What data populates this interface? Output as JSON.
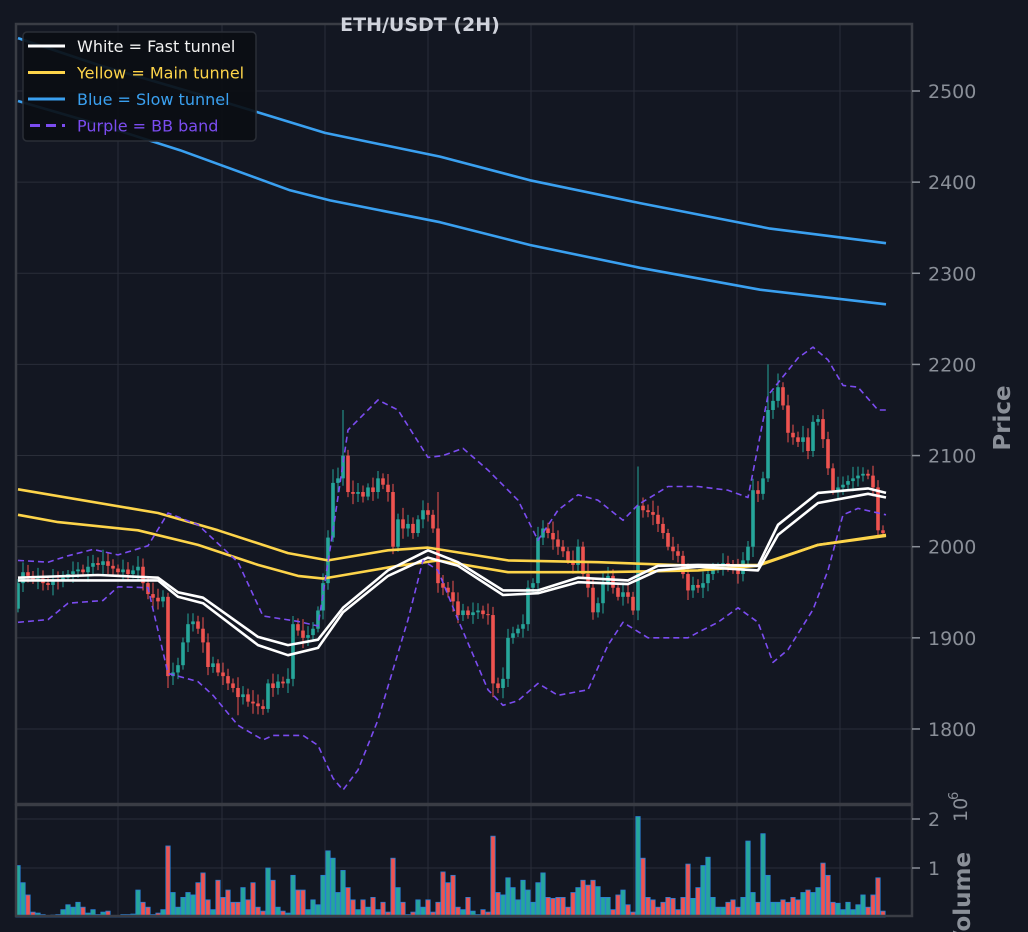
{
  "chart_data": {
    "type": "candlestick",
    "title": "ETH/USDT (2H)",
    "ylabel": "Price",
    "volume_label": "Volume",
    "volume_offset_text": "10",
    "volume_offset_exp": "6",
    "ylim": [
      1718,
      2573
    ],
    "volume_ylim": [
      0,
      2.3
    ],
    "yticks": [
      1800,
      1900,
      2000,
      2100,
      2200,
      2300,
      2400,
      2500
    ],
    "volume_yticks": [
      1,
      2
    ],
    "grid": true,
    "legend_position": "top-left",
    "legend": [
      {
        "label": "White = Fast tunnel",
        "color": "#ffffff",
        "style": "solid"
      },
      {
        "label": "Yellow = Main tunnel",
        "color": "#fdd44a",
        "style": "solid"
      },
      {
        "label": "Blue = Slow tunnel",
        "color": "#3aa0f0",
        "style": "solid"
      },
      {
        "label": "Purple = BB band",
        "color": "#7b4cf0",
        "style": "dashed"
      }
    ],
    "colors": {
      "up": "#26a69a",
      "down": "#ef5350",
      "volume_edge": "#2a7fd4",
      "background": "#131722",
      "grid": "#2a2e39"
    },
    "first_open": 1932,
    "close": [
      1960,
      1972,
      1968,
      1964,
      1965,
      1960,
      1958,
      1963,
      1962,
      1966,
      1970,
      1973,
      1975,
      1972,
      1978,
      1982,
      1980,
      1984,
      1979,
      1976,
      1972,
      1975,
      1970,
      1974,
      1978,
      1960,
      1948,
      1944,
      1940,
      1945,
      1858,
      1862,
      1870,
      1895,
      1915,
      1918,
      1910,
      1895,
      1868,
      1872,
      1862,
      1858,
      1850,
      1845,
      1835,
      1838,
      1830,
      1828,
      1825,
      1822,
      1850,
      1845,
      1852,
      1850,
      1855,
      1915,
      1908,
      1900,
      1903,
      1910,
      1930,
      1960,
      2010,
      2070,
      2075,
      2100,
      2060,
      2058,
      2060,
      2055,
      2065,
      2060,
      2075,
      2068,
      2060,
      2000,
      2030,
      2020,
      2025,
      2015,
      2030,
      2040,
      2035,
      2020,
      1960,
      1955,
      1950,
      1940,
      1925,
      1930,
      1925,
      1928,
      1930,
      1926,
      1925,
      1850,
      1845,
      1855,
      1900,
      1905,
      1910,
      1915,
      1955,
      1960,
      2010,
      2020,
      2015,
      2008,
      2000,
      1995,
      1985,
      1980,
      2000,
      1970,
      1955,
      1928,
      1938,
      1960,
      1968,
      1955,
      1945,
      1950,
      1945,
      1930,
      2045,
      2040,
      2038,
      2035,
      2025,
      2015,
      2000,
      1995,
      1990,
      1970,
      1952,
      1958,
      1955,
      1960,
      1970,
      1975,
      1978,
      1982,
      1980,
      1975,
      1970,
      1985,
      2000,
      2062,
      2058,
      2075,
      2150,
      2160,
      2175,
      2155,
      2125,
      2120,
      2115,
      2120,
      2105,
      2137,
      2140,
      2118,
      2086,
      2062,
      2065,
      2068,
      2072,
      2075,
      2078,
      2080,
      2078,
      2065,
      2018,
      2015
    ],
    "wick_default": 9,
    "wick_overrides": {
      "30": {
        "low": 1845
      },
      "63": {
        "high": 2085
      },
      "65": {
        "high": 2150
      },
      "84": {
        "high": 2060
      },
      "95": {
        "low": 1835
      },
      "124": {
        "high": 2088
      },
      "150": {
        "high": 2200
      },
      "152": {
        "high": 2190
      },
      "44": {
        "low": 1815
      }
    },
    "volume": [
      1.05,
      0.7,
      0.45,
      0.1,
      0.08,
      0.05,
      0.03,
      0.04,
      0.05,
      0.15,
      0.25,
      0.2,
      0.3,
      0.2,
      0.08,
      0.15,
      0.05,
      0.1,
      0.12,
      0.03,
      0.02,
      0.05,
      0.05,
      0.06,
      0.55,
      0.3,
      0.2,
      0.05,
      0.08,
      0.15,
      1.45,
      0.5,
      0.2,
      0.4,
      0.5,
      0.45,
      0.7,
      0.9,
      0.35,
      0.15,
      0.75,
      0.4,
      0.55,
      0.3,
      0.3,
      0.6,
      0.35,
      0.7,
      0.2,
      0.12,
      1.0,
      0.75,
      0.2,
      0.12,
      0.08,
      0.85,
      0.55,
      0.55,
      0.15,
      0.35,
      0.25,
      0.85,
      1.35,
      1.2,
      0.5,
      0.95,
      0.6,
      0.35,
      0.15,
      0.35,
      0.2,
      0.4,
      0.15,
      0.3,
      0.1,
      1.2,
      0.6,
      0.3,
      0.05,
      0.1,
      0.35,
      0.2,
      0.35,
      0.1,
      0.3,
      0.92,
      0.7,
      0.85,
      0.2,
      0.15,
      0.4,
      0.12,
      0.05,
      0.15,
      0.1,
      1.65,
      0.5,
      0.45,
      0.8,
      0.6,
      0.35,
      0.75,
      0.55,
      0.3,
      0.7,
      0.9,
      0.4,
      0.38,
      0.4,
      0.4,
      0.2,
      0.5,
      0.6,
      0.75,
      0.65,
      0.75,
      0.62,
      0.4,
      0.4,
      0.15,
      0.45,
      0.55,
      0.25,
      0.1,
      2.05,
      1.2,
      0.4,
      0.35,
      0.2,
      0.3,
      0.4,
      0.38,
      0.15,
      0.4,
      1.08,
      0.38,
      0.6,
      1.05,
      1.22,
      0.4,
      0.2,
      0.2,
      0.3,
      0.35,
      0.2,
      0.4,
      1.55,
      0.5,
      0.3,
      1.7,
      0.85,
      0.3,
      0.3,
      0.35,
      0.3,
      0.4,
      0.35,
      0.5,
      0.55,
      0.5,
      0.6,
      1.1,
      0.85,
      0.3,
      0.28,
      0.15,
      0.3,
      0.15,
      0.25,
      0.45,
      0.2,
      0.45,
      0.8,
      0.12
    ],
    "lines": [
      {
        "name": "slow-tunnel-upper",
        "color": "#3aa0f0",
        "dashed": false,
        "points": [
          [
            0,
            2558
          ],
          [
            16.4,
            2528
          ],
          [
            36.4,
            2496
          ],
          [
            61.4,
            2454
          ],
          [
            84.4,
            2428
          ],
          [
            102.4,
            2402
          ],
          [
            124.4,
            2377
          ],
          [
            150.4,
            2349
          ],
          [
            173.6,
            2333
          ]
        ]
      },
      {
        "name": "slow-tunnel-lower",
        "color": "#3aa0f0",
        "dashed": false,
        "points": [
          [
            0,
            2489
          ],
          [
            16.4,
            2463
          ],
          [
            32.4,
            2435
          ],
          [
            54.4,
            2391
          ],
          [
            62.4,
            2380
          ],
          [
            84.4,
            2356
          ],
          [
            102.4,
            2331
          ],
          [
            124.4,
            2306
          ],
          [
            148.4,
            2282
          ],
          [
            173.6,
            2266
          ]
        ]
      },
      {
        "name": "main-tunnel-upper",
        "color": "#fdd44a",
        "dashed": false,
        "points": [
          [
            0,
            2063
          ],
          [
            28,
            2037
          ],
          [
            40,
            2018
          ],
          [
            54,
            1993
          ],
          [
            62,
            1985
          ],
          [
            74,
            1996
          ],
          [
            82,
            1999
          ],
          [
            98,
            1985
          ],
          [
            116,
            1983
          ],
          [
            136,
            1979
          ],
          [
            148,
            1980
          ],
          [
            160,
            2002
          ],
          [
            173.6,
            2013
          ]
        ]
      },
      {
        "name": "main-tunnel-lower",
        "color": "#fdd44a",
        "dashed": false,
        "points": [
          [
            0,
            2035
          ],
          [
            8,
            2027
          ],
          [
            24,
            2018
          ],
          [
            36,
            2002
          ],
          [
            48,
            1980
          ],
          [
            56,
            1968
          ],
          [
            61,
            1965
          ],
          [
            76,
            1979
          ],
          [
            84,
            1985
          ],
          [
            98,
            1972
          ],
          [
            116,
            1972
          ],
          [
            136,
            1974
          ],
          [
            148,
            1979
          ],
          [
            160,
            2002
          ],
          [
            173.6,
            2012
          ]
        ]
      },
      {
        "name": "fast-tunnel-upper",
        "color": "#ffffff",
        "dashed": false,
        "points": [
          [
            0,
            1966
          ],
          [
            16,
            1969
          ],
          [
            28,
            1966
          ],
          [
            32,
            1950
          ],
          [
            37,
            1944
          ],
          [
            48,
            1901
          ],
          [
            54,
            1892
          ],
          [
            60,
            1898
          ],
          [
            65,
            1933
          ],
          [
            74,
            1974
          ],
          [
            82,
            1996
          ],
          [
            88,
            1983
          ],
          [
            97,
            1952
          ],
          [
            104,
            1952
          ],
          [
            112,
            1966
          ],
          [
            122,
            1963
          ],
          [
            128,
            1979
          ],
          [
            136,
            1980
          ],
          [
            148,
            1979
          ],
          [
            152,
            2024
          ],
          [
            160,
            2059
          ],
          [
            170,
            2064
          ],
          [
            173.6,
            2059
          ]
        ]
      },
      {
        "name": "fast-tunnel-lower",
        "color": "#ffffff",
        "dashed": false,
        "points": [
          [
            0,
            1963
          ],
          [
            28,
            1963
          ],
          [
            32,
            1945
          ],
          [
            37,
            1938
          ],
          [
            48,
            1892
          ],
          [
            54,
            1881
          ],
          [
            60,
            1889
          ],
          [
            65,
            1928
          ],
          [
            74,
            1968
          ],
          [
            82,
            1988
          ],
          [
            88,
            1979
          ],
          [
            97,
            1947
          ],
          [
            104,
            1949
          ],
          [
            112,
            1961
          ],
          [
            122,
            1959
          ],
          [
            128,
            1974
          ],
          [
            136,
            1978
          ],
          [
            148,
            1974
          ],
          [
            152,
            2013
          ],
          [
            160,
            2048
          ],
          [
            170,
            2058
          ],
          [
            173.6,
            2054
          ]
        ]
      },
      {
        "name": "bb-upper",
        "color": "#7b4cf0",
        "dashed": true,
        "points": [
          [
            0,
            1985
          ],
          [
            6,
            1983
          ],
          [
            10,
            1990
          ],
          [
            15,
            1997
          ],
          [
            20,
            1991
          ],
          [
            26,
            2001
          ],
          [
            30,
            2037
          ],
          [
            36,
            2024
          ],
          [
            44,
            1983
          ],
          [
            49,
            1924
          ],
          [
            56,
            1918
          ],
          [
            60,
            1913
          ],
          [
            63,
            2018
          ],
          [
            66,
            2128
          ],
          [
            72,
            2161
          ],
          [
            76,
            2150
          ],
          [
            82,
            2098
          ],
          [
            85,
            2100
          ],
          [
            89,
            2108
          ],
          [
            94,
            2084
          ],
          [
            100,
            2051
          ],
          [
            104,
            2007
          ],
          [
            108,
            2040
          ],
          [
            112,
            2057
          ],
          [
            116,
            2051
          ],
          [
            121,
            2029
          ],
          [
            124,
            2046
          ],
          [
            130,
            2066
          ],
          [
            136,
            2066
          ],
          [
            142,
            2062
          ],
          [
            146,
            2054
          ],
          [
            150,
            2166
          ],
          [
            156,
            2207
          ],
          [
            159,
            2219
          ],
          [
            162,
            2205
          ],
          [
            165,
            2177
          ],
          [
            168,
            2175
          ],
          [
            172,
            2150
          ],
          [
            173.6,
            2150
          ]
        ]
      },
      {
        "name": "bb-lower",
        "color": "#7b4cf0",
        "dashed": true,
        "points": [
          [
            0,
            1917
          ],
          [
            6,
            1920
          ],
          [
            10,
            1938
          ],
          [
            17,
            1941
          ],
          [
            20,
            1956
          ],
          [
            26,
            1955
          ],
          [
            30,
            1861
          ],
          [
            36,
            1852
          ],
          [
            39,
            1837
          ],
          [
            44,
            1804
          ],
          [
            49,
            1788
          ],
          [
            51,
            1793
          ],
          [
            57,
            1793
          ],
          [
            60,
            1782
          ],
          [
            63,
            1746
          ],
          [
            65,
            1733
          ],
          [
            68,
            1755
          ],
          [
            72,
            1810
          ],
          [
            75,
            1865
          ],
          [
            78,
            1920
          ],
          [
            81,
            1985
          ],
          [
            84,
            1974
          ],
          [
            88,
            1920
          ],
          [
            94,
            1843
          ],
          [
            97,
            1826
          ],
          [
            100,
            1831
          ],
          [
            104,
            1850
          ],
          [
            108,
            1837
          ],
          [
            114,
            1843
          ],
          [
            118,
            1892
          ],
          [
            121,
            1917
          ],
          [
            126,
            1900
          ],
          [
            134,
            1900
          ],
          [
            136,
            1906
          ],
          [
            140,
            1917
          ],
          [
            144,
            1933
          ],
          [
            148,
            1917
          ],
          [
            151,
            1873
          ],
          [
            154,
            1887
          ],
          [
            159,
            1931
          ],
          [
            162,
            1974
          ],
          [
            165,
            2035
          ],
          [
            168,
            2042
          ],
          [
            173.6,
            2035
          ]
        ]
      }
    ]
  }
}
